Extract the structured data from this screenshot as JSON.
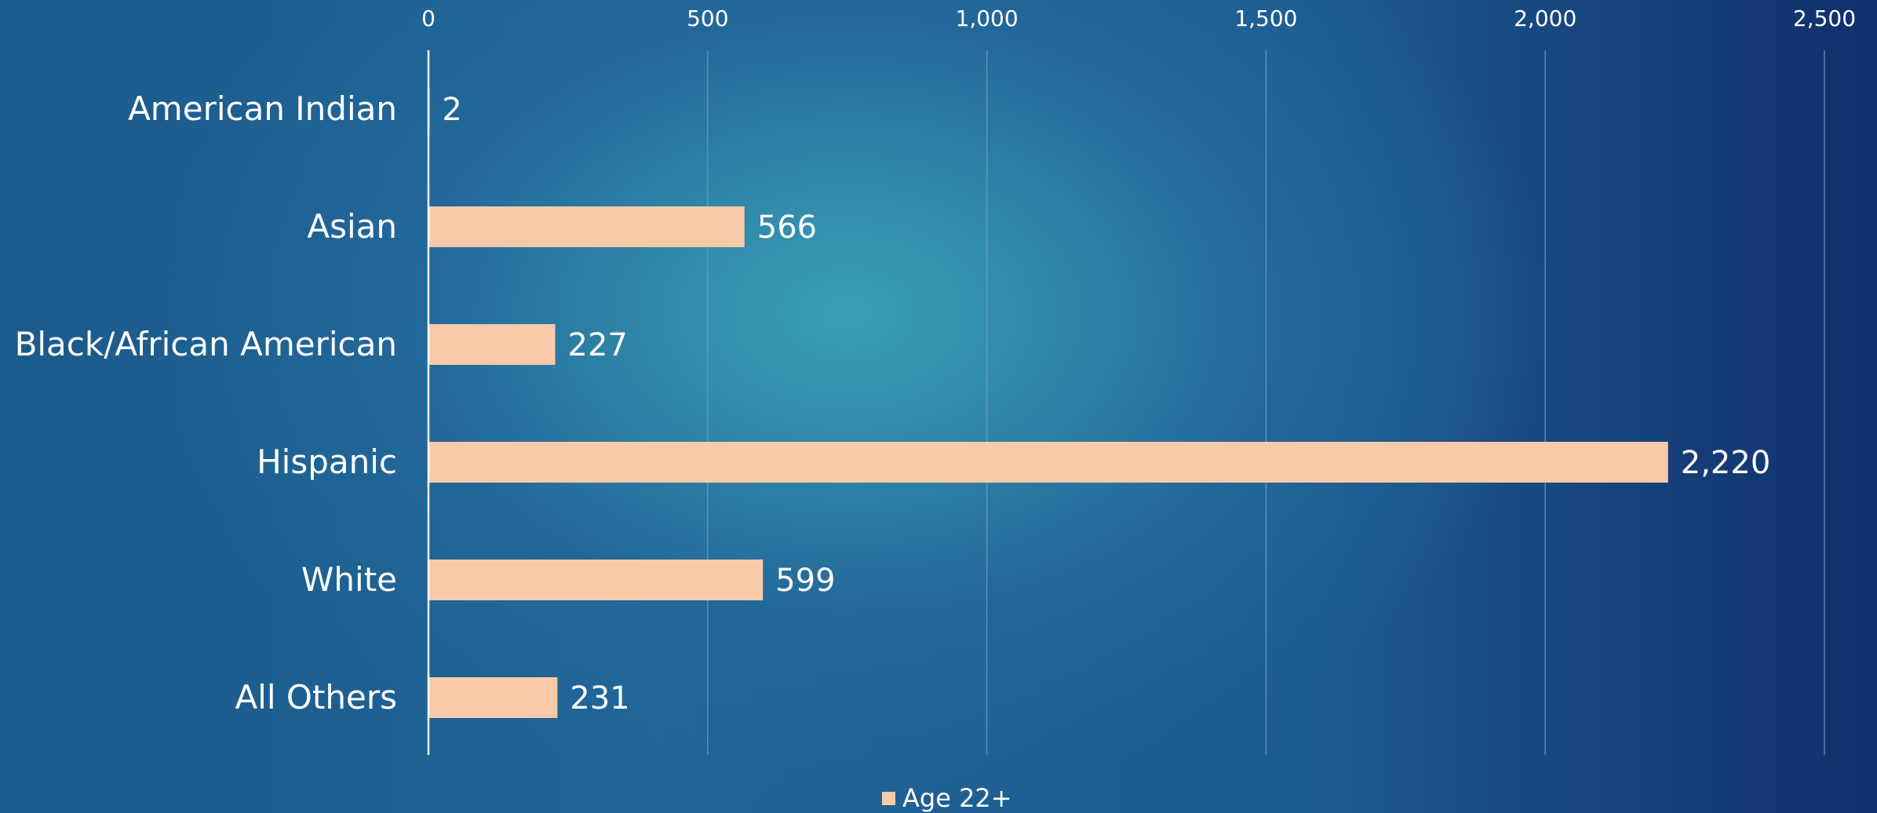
{
  "chart_data": {
    "type": "bar",
    "orientation": "horizontal",
    "categories": [
      "American Indian",
      "Asian",
      "Black/African American",
      "Hispanic",
      "White",
      "All Others"
    ],
    "series": [
      {
        "name": "Age 22+",
        "values": [
          2,
          566,
          227,
          2220,
          599,
          231
        ],
        "color": "#f8caa8"
      }
    ],
    "data_labels": [
      "2",
      "566",
      "227",
      "2,220",
      "599",
      "231"
    ],
    "x_ticks": [
      "0",
      "500",
      "1,000",
      "1,500",
      "2,000",
      "2,500"
    ],
    "xlim": [
      0,
      2500
    ],
    "x_axis_position": "top",
    "grid": true,
    "legend_position": "bottom",
    "colors": {
      "bar": "#f8caa8",
      "text": "#ffffff",
      "grid": "#6f9ec0",
      "axis": "#ffffff"
    }
  }
}
